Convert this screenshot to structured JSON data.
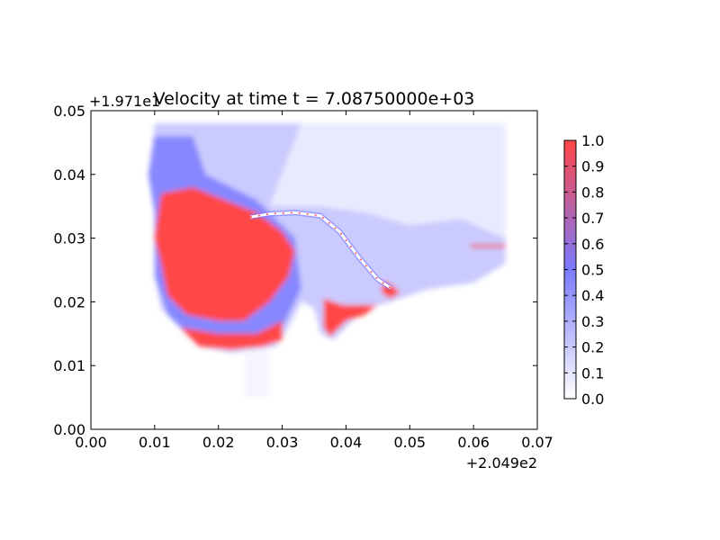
{
  "chart_data": {
    "type": "heatmap",
    "title": "Velocity at time t = 7.08750000e+03",
    "xlabel": "",
    "ylabel": "",
    "xlim": [
      0.0,
      0.07
    ],
    "ylim": [
      0.0,
      0.05
    ],
    "x_ticks": [
      "0.00",
      "0.01",
      "0.02",
      "0.03",
      "0.04",
      "0.05",
      "0.06",
      "0.07"
    ],
    "y_ticks": [
      "0.00",
      "0.01",
      "0.02",
      "0.03",
      "0.04",
      "0.05"
    ],
    "x_offset_text": "+2.049e2",
    "y_offset_text": "+1.971e1",
    "colorbar": {
      "min": 0.0,
      "max": 1.0,
      "ticks": [
        "0.0",
        "0.1",
        "0.2",
        "0.3",
        "0.4",
        "0.5",
        "0.6",
        "0.7",
        "0.8",
        "0.9",
        "1.0"
      ],
      "colors": [
        "#ffffff",
        "#7a7aff",
        "#ff4646"
      ]
    },
    "field_regions": [
      {
        "name": "domain-background",
        "value": 0.2,
        "polygon": [
          [
            0.01,
            0.048
          ],
          [
            0.065,
            0.048
          ],
          [
            0.065,
            0.026
          ],
          [
            0.06,
            0.023
          ],
          [
            0.053,
            0.022
          ],
          [
            0.047,
            0.02
          ],
          [
            0.043,
            0.019
          ],
          [
            0.04,
            0.016
          ],
          [
            0.038,
            0.014
          ],
          [
            0.036,
            0.015
          ],
          [
            0.035,
            0.019
          ],
          [
            0.033,
            0.02
          ],
          [
            0.031,
            0.016
          ],
          [
            0.029,
            0.013
          ],
          [
            0.022,
            0.012
          ],
          [
            0.017,
            0.013
          ],
          [
            0.014,
            0.016
          ],
          [
            0.011,
            0.019
          ],
          [
            0.01,
            0.024
          ],
          [
            0.01,
            0.034
          ],
          [
            0.009,
            0.04
          ],
          [
            0.01,
            0.048
          ]
        ]
      },
      {
        "name": "upper-right-pale",
        "value": 0.08,
        "polygon": [
          [
            0.033,
            0.048
          ],
          [
            0.065,
            0.048
          ],
          [
            0.065,
            0.03
          ],
          [
            0.058,
            0.033
          ],
          [
            0.05,
            0.032
          ],
          [
            0.043,
            0.034
          ],
          [
            0.036,
            0.035
          ],
          [
            0.028,
            0.035
          ]
        ]
      },
      {
        "name": "left-coastal-band",
        "value": 0.45,
        "polygon": [
          [
            0.01,
            0.046
          ],
          [
            0.016,
            0.046
          ],
          [
            0.018,
            0.04
          ],
          [
            0.026,
            0.036
          ],
          [
            0.032,
            0.03
          ],
          [
            0.033,
            0.022
          ],
          [
            0.03,
            0.016
          ],
          [
            0.024,
            0.013
          ],
          [
            0.017,
            0.013
          ],
          [
            0.012,
            0.018
          ],
          [
            0.01,
            0.024
          ],
          [
            0.01,
            0.034
          ],
          [
            0.009,
            0.04
          ]
        ]
      },
      {
        "name": "main-high-velocity-zone",
        "value": 1.0,
        "polygon": [
          [
            0.011,
            0.037
          ],
          [
            0.016,
            0.038
          ],
          [
            0.021,
            0.036
          ],
          [
            0.026,
            0.034
          ],
          [
            0.03,
            0.031
          ],
          [
            0.032,
            0.028
          ],
          [
            0.031,
            0.024
          ],
          [
            0.028,
            0.02
          ],
          [
            0.024,
            0.017
          ],
          [
            0.02,
            0.017
          ],
          [
            0.015,
            0.018
          ],
          [
            0.012,
            0.021
          ],
          [
            0.011,
            0.026
          ],
          [
            0.01,
            0.03
          ]
        ]
      },
      {
        "name": "southern-red-band",
        "value": 1.0,
        "polygon": [
          [
            0.014,
            0.016
          ],
          [
            0.02,
            0.015
          ],
          [
            0.026,
            0.015
          ],
          [
            0.03,
            0.017
          ],
          [
            0.03,
            0.014
          ],
          [
            0.027,
            0.013
          ],
          [
            0.022,
            0.0125
          ],
          [
            0.017,
            0.013
          ]
        ]
      },
      {
        "name": "channel-lobe-red",
        "value": 1.0,
        "polygon": [
          [
            0.0365,
            0.0205
          ],
          [
            0.0395,
            0.0195
          ],
          [
            0.045,
            0.0195
          ],
          [
            0.046,
            0.0205
          ],
          [
            0.043,
            0.018
          ],
          [
            0.04,
            0.017
          ],
          [
            0.0375,
            0.0145
          ],
          [
            0.0365,
            0.016
          ]
        ]
      },
      {
        "name": "channel-lobe-red-2",
        "value": 1.0,
        "polygon": [
          [
            0.046,
            0.0235
          ],
          [
            0.0485,
            0.0215
          ],
          [
            0.047,
            0.0205
          ],
          [
            0.0455,
            0.0215
          ]
        ]
      },
      {
        "name": "right-edge-red",
        "value": 0.95,
        "polygon": [
          [
            0.0595,
            0.029
          ],
          [
            0.065,
            0.029
          ],
          [
            0.065,
            0.0285
          ],
          [
            0.0595,
            0.0285
          ]
        ]
      }
    ],
    "levee_curve": {
      "value": 0.0,
      "x": [
        0.025,
        0.028,
        0.032,
        0.036,
        0.039,
        0.042,
        0.045,
        0.047
      ],
      "y": [
        0.0333,
        0.0338,
        0.034,
        0.0335,
        0.031,
        0.027,
        0.0235,
        0.0222
      ]
    },
    "plume": {
      "value": 0.05,
      "x": [
        0.024,
        0.028,
        0.028,
        0.024
      ],
      "y": [
        0.0125,
        0.0125,
        0.005,
        0.005
      ]
    }
  }
}
